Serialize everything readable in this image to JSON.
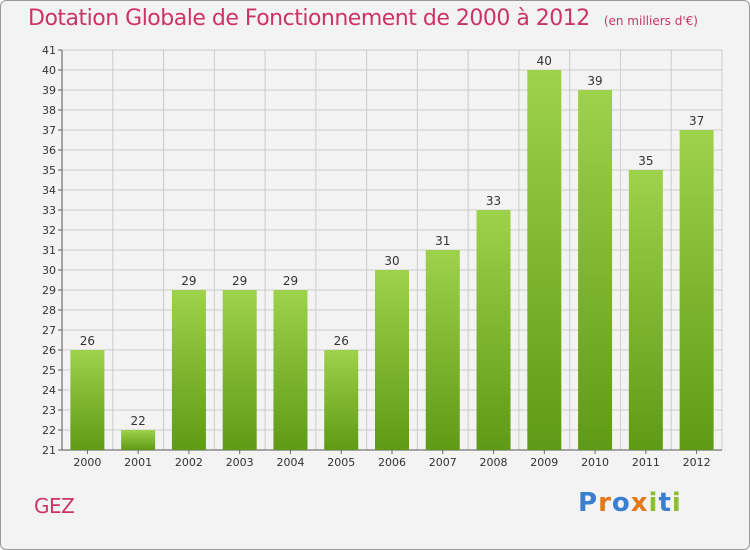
{
  "header": {
    "title": "Dotation Globale de Fonctionnement de 2000 à 2012",
    "unit": "(en milliers d'€)"
  },
  "footer": {
    "place": "GEZ",
    "brand": "Proxiti"
  },
  "colors": {
    "title": "#cc3366",
    "bar_top": "#9ed24a",
    "bar_bottom": "#5f9a16",
    "grid": "#cccccc"
  },
  "chart_data": {
    "type": "bar",
    "title": "Dotation Globale de Fonctionnement de 2000 à 2012",
    "subtitle": "(en milliers d'€)",
    "xlabel": "",
    "ylabel": "",
    "categories": [
      "2000",
      "2001",
      "2002",
      "2003",
      "2004",
      "2005",
      "2006",
      "2007",
      "2008",
      "2009",
      "2010",
      "2011",
      "2012"
    ],
    "values": [
      26,
      22,
      29,
      29,
      29,
      26,
      30,
      31,
      33,
      40,
      39,
      35,
      37
    ],
    "ylim": [
      21,
      41
    ],
    "yticks": [
      21,
      22,
      23,
      24,
      25,
      26,
      27,
      28,
      29,
      30,
      31,
      32,
      33,
      34,
      35,
      36,
      37,
      38,
      39,
      40,
      41
    ],
    "grid": true,
    "data_labels": true
  }
}
